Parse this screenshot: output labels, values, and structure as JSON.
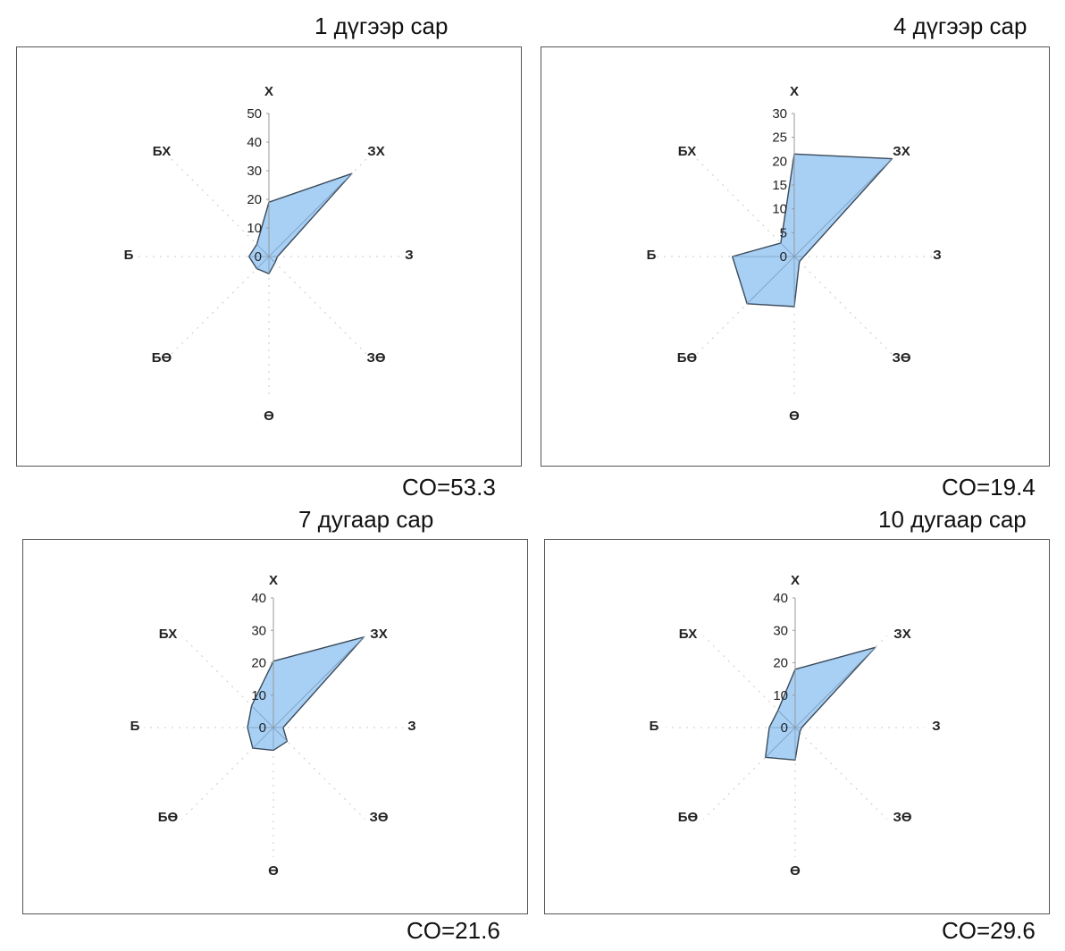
{
  "chart_data": [
    {
      "type": "radar",
      "title": "1 дүгээр сар",
      "note": "CO=53.3",
      "directions": [
        "Х",
        "ЗХ",
        "З",
        "ЗӨ",
        "Ө",
        "БӨ",
        "Б",
        "БХ"
      ],
      "ticks": [
        0,
        10,
        20,
        30,
        40,
        50
      ],
      "rmax": 50,
      "values": [
        19,
        41,
        3,
        3,
        6,
        6,
        7,
        6
      ],
      "colors": {
        "fill": "#a8d0f5",
        "stroke": "#3b4a5a"
      }
    },
    {
      "type": "radar",
      "title": "4 дүгээр сар",
      "note": "CO=19.4",
      "directions": [
        "Х",
        "ЗХ",
        "З",
        "ЗӨ",
        "Ө",
        "БӨ",
        "Б",
        "БХ"
      ],
      "ticks": [
        0,
        5,
        10,
        15,
        20,
        25,
        30
      ],
      "rmax": 30,
      "values": [
        21.5,
        29,
        2,
        1.5,
        10.5,
        14,
        13,
        4
      ],
      "colors": {
        "fill": "#a8d0f5",
        "stroke": "#3b4a5a"
      }
    },
    {
      "type": "radar",
      "title": "7 дугаар сар",
      "note": "CO=21.6",
      "directions": [
        "Х",
        "ЗХ",
        "З",
        "ЗӨ",
        "Ө",
        "БӨ",
        "Б",
        "БХ"
      ],
      "ticks": [
        0,
        10,
        20,
        30,
        40
      ],
      "rmax": 40,
      "values": [
        20.5,
        39.5,
        3,
        6,
        7,
        9,
        8,
        9.5
      ],
      "colors": {
        "fill": "#a8d0f5",
        "stroke": "#3b4a5a"
      }
    },
    {
      "type": "radar",
      "title": "10 дугаар сар",
      "note": "CO=29.6",
      "directions": [
        "Х",
        "ЗХ",
        "З",
        "ЗӨ",
        "Ө",
        "БӨ",
        "Б",
        "БХ"
      ],
      "ticks": [
        0,
        10,
        20,
        30,
        40
      ],
      "rmax": 40,
      "values": [
        18,
        35,
        2,
        2,
        10,
        13,
        8,
        7.5
      ],
      "colors": {
        "fill": "#a8d0f5",
        "stroke": "#3b4a5a"
      }
    }
  ]
}
